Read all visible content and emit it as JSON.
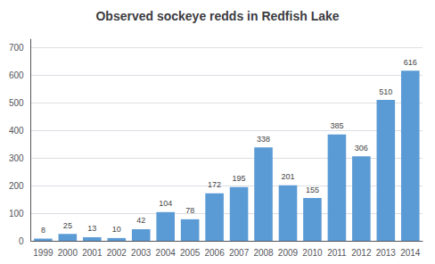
{
  "chart_data": {
    "type": "bar",
    "title": "Observed sockeye redds in Redfish Lake",
    "categories": [
      "1999",
      "2000",
      "2001",
      "2002",
      "2003",
      "2004",
      "2005",
      "2006",
      "2007",
      "2008",
      "2009",
      "2010",
      "2011",
      "2012",
      "2013",
      "2014"
    ],
    "values": [
      8,
      25,
      13,
      10,
      42,
      104,
      78,
      172,
      195,
      338,
      201,
      155,
      385,
      306,
      510,
      616
    ],
    "color": "#5B9BD5",
    "ylim": [
      0,
      730
    ],
    "yticks": [
      0,
      100,
      200,
      300,
      400,
      500,
      600,
      700
    ],
    "grid": true,
    "data_labels": true
  }
}
